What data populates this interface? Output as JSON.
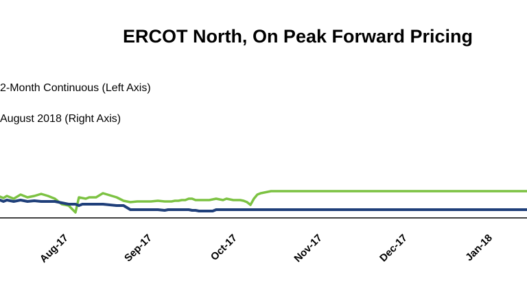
{
  "chart_data": {
    "type": "line",
    "title": "ERCOT North, On Peak Forward Pricing",
    "legend_placement": "top-left",
    "grid": false,
    "x_tick_labels": [
      "Aug-17",
      "Sep-17",
      "Oct-17",
      "Nov-17",
      "Dec-17",
      "Jan-18"
    ],
    "y_axis_labels_visible": false,
    "series": [
      {
        "name": "2-Month Continuous (Left Axis)",
        "color": "#1f3f7a",
        "x": [
          0,
          5,
          10,
          20,
          30,
          40,
          50,
          60,
          70,
          80,
          90,
          100,
          110,
          115,
          120,
          125,
          130,
          140,
          150,
          160,
          170,
          180,
          190,
          200,
          210,
          220,
          230,
          240,
          245,
          250,
          255,
          260,
          265,
          270,
          275,
          280,
          285,
          290,
          295,
          300,
          305,
          310,
          315,
          320,
          325,
          330,
          335,
          340,
          345,
          350,
          355,
          360,
          365,
          370,
          375,
          380,
          385,
          390,
          395,
          400,
          405,
          410,
          415,
          420,
          425,
          430,
          435,
          440,
          445,
          450,
          455,
          460,
          465,
          470,
          475,
          480,
          485,
          490,
          495,
          500,
          505,
          510,
          515,
          520,
          525,
          530,
          535,
          540,
          545,
          550,
          555,
          560,
          565,
          570,
          575,
          580,
          585,
          590,
          595,
          600,
          605,
          610,
          615,
          620,
          625,
          630,
          635,
          640,
          645,
          650,
          655,
          660,
          665,
          670,
          675,
          680,
          685,
          690,
          695,
          700,
          705,
          710,
          715,
          720,
          725,
          730,
          735,
          740,
          745,
          750,
          755,
          760,
          765,
          768
        ],
        "y": [
          292,
          294,
          292,
          294,
          292,
          294,
          293,
          294,
          294,
          294,
          296,
          298,
          298,
          300,
          298,
          298,
          298,
          298,
          298,
          299,
          300,
          300,
          306,
          306,
          306,
          306,
          306,
          307,
          306,
          306,
          306,
          306,
          306,
          306,
          306,
          307,
          307,
          308,
          308,
          308,
          308,
          308,
          306,
          306,
          306,
          306,
          306,
          306,
          306,
          306,
          306,
          306,
          306,
          306,
          306,
          306,
          306,
          306,
          306,
          306,
          306,
          306,
          306,
          306,
          306,
          306,
          306,
          306,
          306,
          306,
          306,
          306,
          306,
          306,
          306,
          306,
          306,
          306,
          306,
          306,
          306,
          306,
          306,
          306,
          306,
          306,
          306,
          306,
          306,
          306,
          306,
          306,
          306,
          306,
          306,
          306,
          306,
          306,
          306,
          306,
          306,
          306,
          306,
          306,
          306,
          306,
          306,
          306,
          306,
          306,
          306,
          306,
          306,
          306,
          306,
          306,
          306,
          306,
          306,
          306,
          306,
          306,
          306,
          306,
          306,
          306,
          306,
          306,
          306,
          306,
          306,
          306,
          306,
          306
        ]
      },
      {
        "name": "August 2018 (Right Axis)",
        "color": "#7cc242",
        "x": [
          0,
          5,
          10,
          20,
          30,
          40,
          50,
          60,
          70,
          80,
          90,
          100,
          110,
          115,
          120,
          125,
          130,
          140,
          150,
          160,
          170,
          180,
          190,
          200,
          210,
          220,
          230,
          240,
          245,
          250,
          255,
          260,
          265,
          270,
          275,
          280,
          285,
          290,
          295,
          300,
          305,
          310,
          315,
          320,
          325,
          330,
          335,
          340,
          345,
          350,
          355,
          360,
          365,
          370,
          375,
          380,
          385,
          390,
          395,
          400,
          405,
          410,
          415,
          420,
          425,
          430,
          435,
          440,
          445,
          450,
          455,
          460,
          465,
          470,
          475,
          480,
          485,
          490,
          495,
          500,
          505,
          510,
          515,
          520,
          525,
          530,
          535,
          540,
          545,
          550,
          555,
          560,
          565,
          570,
          575,
          580,
          585,
          590,
          595,
          600,
          605,
          610,
          615,
          620,
          625,
          630,
          635,
          640,
          645,
          650,
          655,
          660,
          665,
          670,
          675,
          680,
          685,
          690,
          695,
          700,
          705,
          710,
          715,
          720,
          725,
          730,
          735,
          740,
          745,
          750,
          755,
          760,
          765,
          768
        ],
        "y": [
          287,
          289,
          286,
          290,
          284,
          288,
          286,
          283,
          286,
          290,
          298,
          300,
          310,
          288,
          289,
          290,
          288,
          288,
          282,
          285,
          288,
          293,
          295,
          294,
          294,
          294,
          293,
          294,
          294,
          294,
          293,
          293,
          292,
          292,
          290,
          290,
          292,
          292,
          292,
          292,
          292,
          291,
          290,
          291,
          292,
          290,
          291,
          292,
          292,
          292,
          293,
          295,
          299,
          290,
          284,
          282,
          281,
          280,
          279,
          279,
          279,
          279,
          279,
          279,
          279,
          279,
          279,
          279,
          279,
          279,
          279,
          279,
          279,
          279,
          279,
          279,
          279,
          279,
          279,
          279,
          279,
          279,
          279,
          279,
          279,
          279,
          279,
          279,
          279,
          279,
          279,
          279,
          279,
          279,
          279,
          279,
          279,
          279,
          279,
          279,
          279,
          279,
          279,
          279,
          279,
          279,
          279,
          279,
          279,
          279,
          279,
          279,
          279,
          279,
          279,
          279,
          279,
          279,
          279,
          279,
          279,
          279,
          279,
          279,
          279,
          279,
          279,
          279,
          279,
          279,
          279,
          279,
          279,
          279
        ]
      }
    ]
  }
}
